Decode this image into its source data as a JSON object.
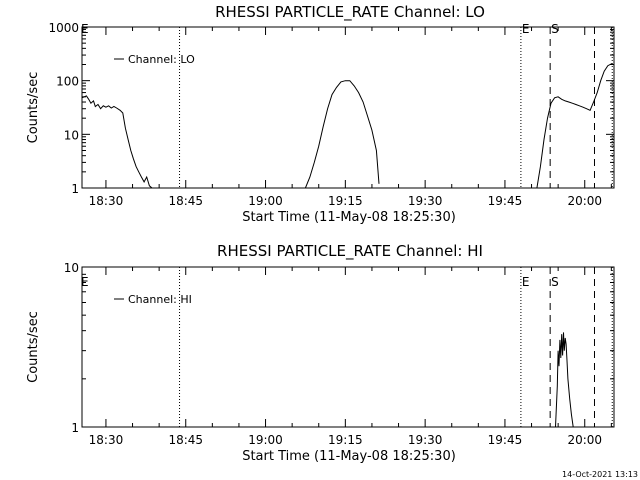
{
  "chart_data": [
    {
      "type": "line",
      "title": "RHESSI PARTICLE_RATE Channel: LO",
      "xlabel": "Start Time (11-May-08 18:25:30)",
      "ylabel": "Counts/sec",
      "yscale": "log",
      "ylim": [
        1,
        1000
      ],
      "xlim": [
        "18:25:30",
        "20:05:30"
      ],
      "ytick_labels": [
        "1",
        "10",
        "100",
        "1000"
      ],
      "ytick_values": [
        1,
        10,
        100,
        1000
      ],
      "xtick_labels": [
        "18:30",
        "18:45",
        "19:00",
        "19:15",
        "19:30",
        "19:45",
        "20:00"
      ],
      "legend": {
        "placement": "top-left",
        "entries": [
          "Channel: LO"
        ]
      },
      "grid": false,
      "vlines": [
        {
          "time": "18:43:50",
          "style": "dotted",
          "label": ""
        },
        {
          "time": "19:48:00",
          "style": "dotted",
          "label": "E"
        },
        {
          "time": "19:53:30",
          "style": "dashed",
          "label": "S"
        },
        {
          "time": "20:01:50",
          "style": "dashed",
          "label": ""
        },
        {
          "time": "20:05:10",
          "style": "dotted",
          "label": ""
        }
      ],
      "series": [
        {
          "name": "Channel: LO",
          "x": [
            "18:25:30",
            "18:26:20",
            "18:26:45",
            "18:27:10",
            "18:27:40",
            "18:28:00",
            "18:28:30",
            "18:29:00",
            "18:29:30",
            "18:30:00",
            "18:30:30",
            "18:31:00",
            "18:31:30",
            "18:32:00",
            "18:32:40",
            "18:33:10",
            "18:33:40",
            "18:34:10",
            "18:34:40",
            "18:35:10",
            "18:35:40",
            "18:36:10",
            "18:36:40",
            "18:37:10",
            "18:37:40",
            "18:38:10",
            "18:38:40"
          ],
          "y": [
            48,
            52,
            45,
            38,
            42,
            33,
            36,
            30,
            34,
            32,
            34,
            31,
            33,
            31,
            28,
            25,
            13,
            8,
            5,
            3.5,
            2.5,
            2,
            1.6,
            1.3,
            1.6,
            1.1,
            1
          ]
        },
        {
          "name": "Channel: LO",
          "x": [
            "19:07:30",
            "19:08:20",
            "19:09:10",
            "19:10:00",
            "19:10:50",
            "19:11:40",
            "19:12:30",
            "19:13:20",
            "19:14:10",
            "19:15:00",
            "19:15:50",
            "19:16:40",
            "19:17:30",
            "19:18:20",
            "19:19:10",
            "19:20:00",
            "19:20:50",
            "19:21:20"
          ],
          "y": [
            1,
            1.6,
            3,
            6,
            14,
            30,
            55,
            75,
            95,
            100,
            100,
            80,
            60,
            40,
            22,
            12,
            5,
            1.2
          ]
        },
        {
          "name": "Channel: LO",
          "x": [
            "19:51:00",
            "19:51:40",
            "19:52:20",
            "19:53:00",
            "19:53:40",
            "19:54:20",
            "19:55:00",
            "19:55:40",
            "19:56:20",
            "19:57:00",
            "19:57:40",
            "19:58:20",
            "19:59:00",
            "19:59:40",
            "20:00:20",
            "20:01:00",
            "20:01:40",
            "20:02:20",
            "20:03:00",
            "20:03:40",
            "20:04:20",
            "20:05:10"
          ],
          "y": [
            1,
            2.5,
            8,
            20,
            38,
            48,
            50,
            45,
            42,
            40,
            38,
            36,
            34,
            32,
            30,
            28,
            40,
            60,
            100,
            150,
            190,
            210
          ]
        }
      ]
    },
    {
      "type": "line",
      "title": "RHESSI PARTICLE_RATE Channel: HI",
      "xlabel": "Start Time (11-May-08 18:25:30)",
      "ylabel": "Counts/sec",
      "yscale": "log",
      "ylim": [
        1,
        10
      ],
      "xlim": [
        "18:25:30",
        "20:05:30"
      ],
      "ytick_labels": [
        "1",
        "10"
      ],
      "ytick_values": [
        1,
        10
      ],
      "xtick_labels": [
        "18:30",
        "18:45",
        "19:00",
        "19:15",
        "19:30",
        "19:45",
        "20:00"
      ],
      "legend": {
        "placement": "top-left",
        "entries": [
          "Channel: HI"
        ]
      },
      "grid": false,
      "vlines": [
        {
          "time": "18:43:50",
          "style": "dotted",
          "label": ""
        },
        {
          "time": "19:48:00",
          "style": "dotted",
          "label": "E"
        },
        {
          "time": "19:53:30",
          "style": "dashed",
          "label": "S"
        },
        {
          "time": "20:01:50",
          "style": "dashed",
          "label": ""
        },
        {
          "time": "20:05:10",
          "style": "dotted",
          "label": ""
        }
      ],
      "series": [
        {
          "name": "Channel: HI",
          "x": [
            "19:54:30",
            "19:54:50",
            "19:55:00",
            "19:55:10",
            "19:55:20",
            "19:55:30",
            "19:55:40",
            "19:55:50",
            "19:56:00",
            "19:56:10",
            "19:56:20",
            "19:56:30",
            "19:56:40",
            "19:56:50",
            "19:57:10",
            "19:57:30",
            "19:57:50"
          ],
          "y": [
            1,
            1.8,
            3.0,
            2.4,
            3.5,
            2.7,
            3.8,
            2.8,
            3.9,
            3.0,
            3.6,
            3.3,
            2.6,
            2.0,
            1.5,
            1.2,
            1
          ]
        }
      ]
    }
  ],
  "edge_label": "E",
  "timestamp": "14-Oct-2021 13:13"
}
